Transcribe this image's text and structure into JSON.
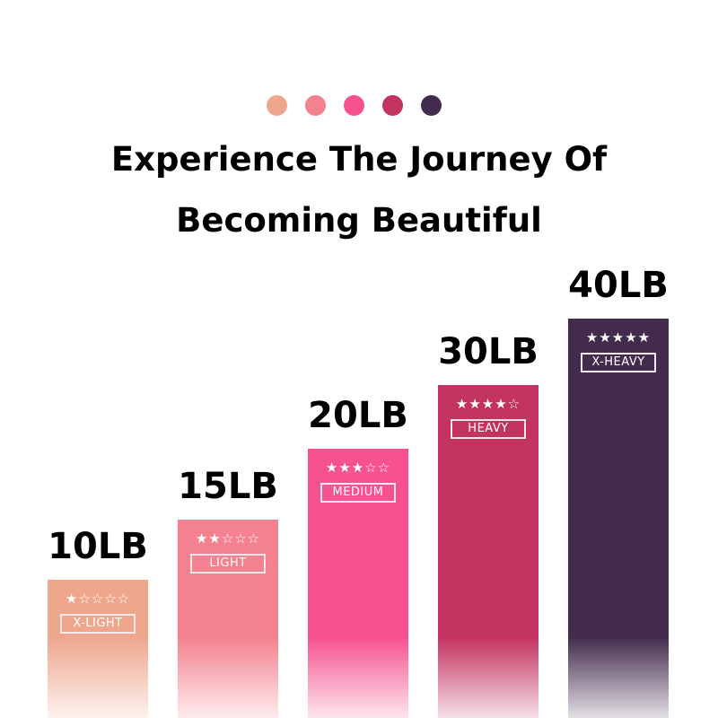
{
  "header": {
    "dot_colors": [
      "#eea78d",
      "#f4818f",
      "#f5528f",
      "#c3335f",
      "#432b4d"
    ],
    "title_line1": "Experience The Journey Of",
    "title_line2": "Becoming Beautiful"
  },
  "chart_data": {
    "type": "bar",
    "categories": [
      "X-LIGHT",
      "LIGHT",
      "MEDIUM",
      "HEAVY",
      "X-HEAVY"
    ],
    "values": [
      10,
      15,
      20,
      30,
      40
    ],
    "value_labels": [
      "10LB",
      "15LB",
      "20LB",
      "30LB",
      "40LB"
    ],
    "star_ratings": [
      1,
      2,
      3,
      4,
      5
    ],
    "star_text": [
      "★☆☆☆☆",
      "★★☆☆☆",
      "★★★☆☆",
      "★★★★☆",
      "★★★★★"
    ],
    "colors": [
      "#eea78d",
      "#f4818f",
      "#f5528f",
      "#c3335f",
      "#432b4d"
    ],
    "title": "",
    "xlabel": "",
    "ylabel": "",
    "grid": false
  }
}
